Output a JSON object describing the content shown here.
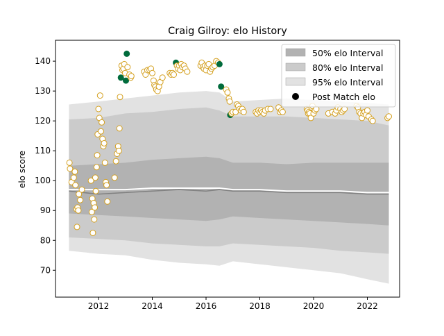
{
  "chart_data": {
    "type": "scatter",
    "title": "Craig Gilroy: elo History",
    "xlabel": "",
    "ylabel": "elo score",
    "xlim": [
      2010.4,
      2023.2
    ],
    "ylim": [
      61,
      147
    ],
    "xticks": [
      2012,
      2014,
      2016,
      2018,
      2020,
      2022
    ],
    "xtick_labels": [
      "2012",
      "2014",
      "2016",
      "2018",
      "2020",
      "2022"
    ],
    "yticks": [
      70,
      80,
      90,
      100,
      110,
      120,
      130,
      140
    ],
    "ytick_labels": [
      "70",
      "80",
      "90",
      "100",
      "110",
      "120",
      "130",
      "140"
    ],
    "grid": false,
    "legend_position": "top-right",
    "legend": [
      {
        "label": "50% elo Interval",
        "kind": "band",
        "color": "#b2b2b2"
      },
      {
        "label": "80% elo Interval",
        "kind": "band",
        "color": "#cbcbcb"
      },
      {
        "label": "95% elo Interval",
        "kind": "band",
        "color": "#e2e2e2"
      },
      {
        "label": "Post Match elo",
        "kind": "marker",
        "color": "#000000"
      }
    ],
    "colors": {
      "band_50": "#b2b2b2",
      "band_80": "#cbcbcb",
      "band_95": "#e2e2e2",
      "median_line": "#808080",
      "mean_line": "#ffffff",
      "marker_edge": "#d4a020",
      "marker_fill": "#ffffff",
      "marker_highlight": "#006b3c"
    },
    "bands": {
      "x": [
        2010.9,
        2012.0,
        2013.0,
        2014.0,
        2015.0,
        2016.0,
        2016.5,
        2017.0,
        2018.0,
        2019.0,
        2020.0,
        2021.0,
        2022.0,
        2022.8
      ],
      "p95_low": [
        76.5,
        75.5,
        75.0,
        73.5,
        72.5,
        72.0,
        71.5,
        73.0,
        72.0,
        71.0,
        70.0,
        69.0,
        67.0,
        65.5
      ],
      "p95_high": [
        125.5,
        126.5,
        127.5,
        128.5,
        129.5,
        130.0,
        129.5,
        126.5,
        127.0,
        127.5,
        127.0,
        126.5,
        126.0,
        125.5
      ],
      "p80_low": [
        81.0,
        80.5,
        80.0,
        79.0,
        78.5,
        78.0,
        78.0,
        79.0,
        78.5,
        78.0,
        77.5,
        76.5,
        76.0,
        75.5
      ],
      "p80_high": [
        120.5,
        121.0,
        122.5,
        123.0,
        124.0,
        124.5,
        123.5,
        121.5,
        121.5,
        121.5,
        121.0,
        120.5,
        120.0,
        118.5
      ],
      "p50_low": [
        89.0,
        88.5,
        88.0,
        87.5,
        87.0,
        86.5,
        87.0,
        88.0,
        87.5,
        87.0,
        86.5,
        86.0,
        85.5,
        85.0
      ],
      "p50_high": [
        105.0,
        105.5,
        106.0,
        107.0,
        107.5,
        108.0,
        107.5,
        106.0,
        106.0,
        105.5,
        106.0,
        106.0,
        106.0,
        106.0
      ],
      "median": [
        96.5,
        95.5,
        96.0,
        96.5,
        97.0,
        96.5,
        97.0,
        96.5,
        96.5,
        96.0,
        96.0,
        96.0,
        95.5,
        95.5
      ],
      "mean": [
        97.0,
        97.0,
        97.0,
        97.5,
        97.5,
        97.5,
        97.5,
        97.0,
        97.0,
        96.5,
        96.5,
        96.5,
        96.0,
        96.0
      ]
    },
    "points": [
      {
        "x": 2010.92,
        "y": 106.0
      },
      {
        "x": 2010.94,
        "y": 104.0
      },
      {
        "x": 2011.0,
        "y": 99.5
      },
      {
        "x": 2011.08,
        "y": 101.0
      },
      {
        "x": 2011.12,
        "y": 103.0
      },
      {
        "x": 2011.14,
        "y": 98.5
      },
      {
        "x": 2011.18,
        "y": 90.5
      },
      {
        "x": 2011.2,
        "y": 84.5
      },
      {
        "x": 2011.22,
        "y": 91.0
      },
      {
        "x": 2011.25,
        "y": 90.0
      },
      {
        "x": 2011.27,
        "y": 95.5
      },
      {
        "x": 2011.32,
        "y": 93.5
      },
      {
        "x": 2011.38,
        "y": 97.0
      },
      {
        "x": 2011.72,
        "y": 100.0
      },
      {
        "x": 2011.75,
        "y": 89.5
      },
      {
        "x": 2011.77,
        "y": 94.0
      },
      {
        "x": 2011.79,
        "y": 82.5
      },
      {
        "x": 2011.82,
        "y": 92.5
      },
      {
        "x": 2011.84,
        "y": 87.0
      },
      {
        "x": 2011.86,
        "y": 91.0
      },
      {
        "x": 2011.88,
        "y": 101.0
      },
      {
        "x": 2011.9,
        "y": 96.5
      },
      {
        "x": 2011.93,
        "y": 104.5
      },
      {
        "x": 2011.95,
        "y": 108.5
      },
      {
        "x": 2011.97,
        "y": 115.5
      },
      {
        "x": 2012.0,
        "y": 124.0
      },
      {
        "x": 2012.03,
        "y": 121.0
      },
      {
        "x": 2012.06,
        "y": 128.5
      },
      {
        "x": 2012.09,
        "y": 116.5
      },
      {
        "x": 2012.12,
        "y": 119.5
      },
      {
        "x": 2012.15,
        "y": 114.0
      },
      {
        "x": 2012.18,
        "y": 111.5
      },
      {
        "x": 2012.21,
        "y": 112.5
      },
      {
        "x": 2012.24,
        "y": 106.0
      },
      {
        "x": 2012.27,
        "y": 99.5
      },
      {
        "x": 2012.3,
        "y": 98.5
      },
      {
        "x": 2012.33,
        "y": 93.0
      },
      {
        "x": 2012.6,
        "y": 101.0
      },
      {
        "x": 2012.65,
        "y": 106.5
      },
      {
        "x": 2012.69,
        "y": 109.0
      },
      {
        "x": 2012.73,
        "y": 111.5
      },
      {
        "x": 2012.76,
        "y": 110.0
      },
      {
        "x": 2012.78,
        "y": 117.5
      },
      {
        "x": 2012.8,
        "y": 128.0
      },
      {
        "x": 2012.83,
        "y": 134.5,
        "highlight": true
      },
      {
        "x": 2012.86,
        "y": 138.5
      },
      {
        "x": 2012.89,
        "y": 137.0
      },
      {
        "x": 2012.93,
        "y": 137.5
      },
      {
        "x": 2012.96,
        "y": 139.0
      },
      {
        "x": 2012.99,
        "y": 136.0
      },
      {
        "x": 2013.02,
        "y": 133.5,
        "highlight": true
      },
      {
        "x": 2013.05,
        "y": 142.5,
        "highlight": true
      },
      {
        "x": 2013.08,
        "y": 138.0
      },
      {
        "x": 2013.15,
        "y": 135.5
      },
      {
        "x": 2013.2,
        "y": 134.5
      },
      {
        "x": 2013.22,
        "y": 135.0
      },
      {
        "x": 2013.7,
        "y": 136.5
      },
      {
        "x": 2013.75,
        "y": 135.5
      },
      {
        "x": 2013.82,
        "y": 137.0
      },
      {
        "x": 2013.9,
        "y": 137.0
      },
      {
        "x": 2013.95,
        "y": 137.5
      },
      {
        "x": 2014.0,
        "y": 136.0
      },
      {
        "x": 2014.05,
        "y": 133.5
      },
      {
        "x": 2014.08,
        "y": 132.0
      },
      {
        "x": 2014.12,
        "y": 131.5
      },
      {
        "x": 2014.15,
        "y": 130.5
      },
      {
        "x": 2014.2,
        "y": 130.0
      },
      {
        "x": 2014.25,
        "y": 131.5
      },
      {
        "x": 2014.3,
        "y": 133.0
      },
      {
        "x": 2014.38,
        "y": 134.5
      },
      {
        "x": 2014.65,
        "y": 136.0
      },
      {
        "x": 2014.7,
        "y": 135.5
      },
      {
        "x": 2014.75,
        "y": 136.0
      },
      {
        "x": 2014.8,
        "y": 135.5
      },
      {
        "x": 2014.88,
        "y": 139.5,
        "highlight": true
      },
      {
        "x": 2014.92,
        "y": 138.5
      },
      {
        "x": 2014.96,
        "y": 137.5
      },
      {
        "x": 2015.0,
        "y": 138.5
      },
      {
        "x": 2015.04,
        "y": 137.0
      },
      {
        "x": 2015.08,
        "y": 139.0
      },
      {
        "x": 2015.12,
        "y": 138.0
      },
      {
        "x": 2015.18,
        "y": 138.5
      },
      {
        "x": 2015.23,
        "y": 137.5
      },
      {
        "x": 2015.3,
        "y": 136.5
      },
      {
        "x": 2015.8,
        "y": 138.5
      },
      {
        "x": 2015.84,
        "y": 139.5
      },
      {
        "x": 2015.88,
        "y": 138.0
      },
      {
        "x": 2015.92,
        "y": 137.5
      },
      {
        "x": 2015.96,
        "y": 138.5
      },
      {
        "x": 2016.0,
        "y": 137.0
      },
      {
        "x": 2016.05,
        "y": 138.5
      },
      {
        "x": 2016.1,
        "y": 139.0
      },
      {
        "x": 2016.15,
        "y": 136.5
      },
      {
        "x": 2016.2,
        "y": 137.5
      },
      {
        "x": 2016.25,
        "y": 138.0
      },
      {
        "x": 2016.32,
        "y": 138.5
      },
      {
        "x": 2016.38,
        "y": 140.0
      },
      {
        "x": 2016.45,
        "y": 139.5
      },
      {
        "x": 2016.5,
        "y": 139.0,
        "highlight": true
      },
      {
        "x": 2016.56,
        "y": 131.5,
        "highlight": true
      },
      {
        "x": 2016.75,
        "y": 130.5
      },
      {
        "x": 2016.8,
        "y": 129.5
      },
      {
        "x": 2016.85,
        "y": 127.5
      },
      {
        "x": 2016.88,
        "y": 126.5
      },
      {
        "x": 2016.9,
        "y": 122.0,
        "highlight": true
      },
      {
        "x": 2016.95,
        "y": 122.5
      },
      {
        "x": 2017.0,
        "y": 123.0
      },
      {
        "x": 2017.1,
        "y": 123.0
      },
      {
        "x": 2017.15,
        "y": 125.5
      },
      {
        "x": 2017.2,
        "y": 125.0
      },
      {
        "x": 2017.25,
        "y": 124.0
      },
      {
        "x": 2017.3,
        "y": 123.5
      },
      {
        "x": 2017.35,
        "y": 124.0
      },
      {
        "x": 2017.4,
        "y": 123.0
      },
      {
        "x": 2017.85,
        "y": 123.0
      },
      {
        "x": 2017.9,
        "y": 122.5
      },
      {
        "x": 2017.95,
        "y": 123.5
      },
      {
        "x": 2018.0,
        "y": 123.0
      },
      {
        "x": 2018.05,
        "y": 123.5
      },
      {
        "x": 2018.1,
        "y": 123.0
      },
      {
        "x": 2018.15,
        "y": 122.5
      },
      {
        "x": 2018.2,
        "y": 123.5
      },
      {
        "x": 2018.3,
        "y": 124.0
      },
      {
        "x": 2018.4,
        "y": 124.0
      },
      {
        "x": 2018.7,
        "y": 124.5
      },
      {
        "x": 2018.75,
        "y": 123.0
      },
      {
        "x": 2018.8,
        "y": 123.5
      },
      {
        "x": 2018.85,
        "y": 123.0
      },
      {
        "x": 2019.75,
        "y": 124.0
      },
      {
        "x": 2019.78,
        "y": 123.5
      },
      {
        "x": 2019.8,
        "y": 122.5
      },
      {
        "x": 2019.83,
        "y": 123.0
      },
      {
        "x": 2019.86,
        "y": 122.5
      },
      {
        "x": 2019.9,
        "y": 121.0
      },
      {
        "x": 2019.93,
        "y": 124.5
      },
      {
        "x": 2019.96,
        "y": 125.0
      },
      {
        "x": 2020.0,
        "y": 122.5
      },
      {
        "x": 2020.05,
        "y": 123.5
      },
      {
        "x": 2020.1,
        "y": 124.0
      },
      {
        "x": 2020.55,
        "y": 122.5
      },
      {
        "x": 2020.7,
        "y": 123.0
      },
      {
        "x": 2020.8,
        "y": 122.5
      },
      {
        "x": 2020.85,
        "y": 123.5
      },
      {
        "x": 2020.9,
        "y": 124.5
      },
      {
        "x": 2021.0,
        "y": 124.0
      },
      {
        "x": 2021.05,
        "y": 123.0
      },
      {
        "x": 2021.1,
        "y": 123.5
      },
      {
        "x": 2021.15,
        "y": 124.0
      },
      {
        "x": 2021.6,
        "y": 125.0
      },
      {
        "x": 2021.65,
        "y": 124.5
      },
      {
        "x": 2021.7,
        "y": 123.0
      },
      {
        "x": 2021.75,
        "y": 122.5
      },
      {
        "x": 2021.8,
        "y": 121.0
      },
      {
        "x": 2021.85,
        "y": 122.5
      },
      {
        "x": 2021.9,
        "y": 123.0
      },
      {
        "x": 2021.95,
        "y": 122.0
      },
      {
        "x": 2022.0,
        "y": 123.5
      },
      {
        "x": 2022.05,
        "y": 121.5
      },
      {
        "x": 2022.15,
        "y": 120.5
      },
      {
        "x": 2022.2,
        "y": 120.0
      },
      {
        "x": 2022.75,
        "y": 121.0
      },
      {
        "x": 2022.8,
        "y": 121.5
      }
    ]
  }
}
